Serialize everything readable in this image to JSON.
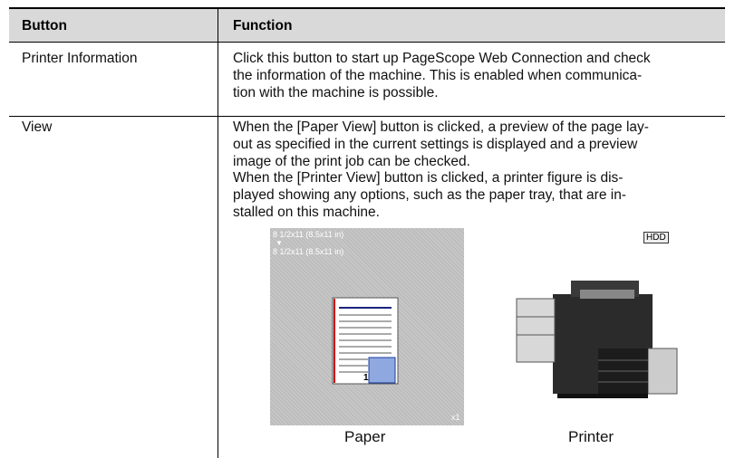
{
  "table": {
    "header": [
      "Button",
      "Function"
    ],
    "rows": [
      {
        "button": "Printer Information",
        "function": [
          "Click this button to start up PageScope Web Connection and check",
          "the information of the machine. This is enabled when communica-",
          "tion with the machine is possible."
        ]
      },
      {
        "button": "View",
        "function": [
          "When the [Paper View] button is clicked, a preview of the page lay-",
          "out as specified in the current settings is displayed and a preview",
          "image of the print job can be checked.",
          "When the [Printer View] button is clicked, a printer figure is dis-",
          "played showing any options, such as the paper tray, that are in-",
          "stalled on this machine."
        ]
      }
    ]
  },
  "figures": {
    "paper": {
      "labels": [
        "8 1/2x11 (8.5x11 in)",
        "▼",
        "8 1/2x11 (8.5x11 in)"
      ],
      "copies": "x1",
      "page": "1",
      "caption": "Paper"
    },
    "printer": {
      "hdd": "HDD",
      "caption": "Printer"
    }
  }
}
